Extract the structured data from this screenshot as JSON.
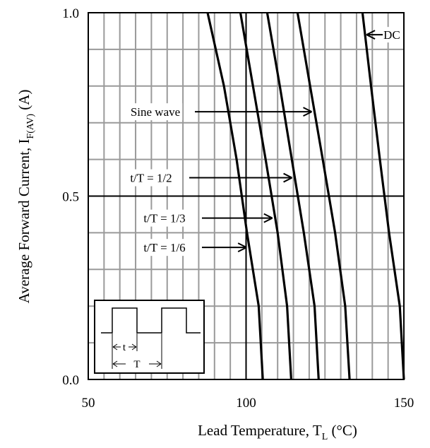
{
  "chart_data": {
    "type": "line",
    "xlabel": {
      "main": "Lead Temperature, T",
      "sub": "L",
      "unit": " (°C)"
    },
    "ylabel": {
      "main": "Average Forward Current, I",
      "sub": "F(AV)",
      "unit": " (A)"
    },
    "xlim": [
      50,
      150
    ],
    "ylim": [
      0.0,
      1.0
    ],
    "x_ticks": [
      {
        "value": 50,
        "label": "50"
      },
      {
        "value": 100,
        "label": "100"
      },
      {
        "value": 150,
        "label": "150"
      }
    ],
    "y_ticks": [
      {
        "value": 0.0,
        "label": "0.0"
      },
      {
        "value": 0.5,
        "label": "0.5"
      },
      {
        "value": 1.0,
        "label": "1.0"
      }
    ],
    "grid": true,
    "grid_minor_x_step": 5,
    "grid_minor_y_step": 0.1,
    "series": [
      {
        "name": "t/T = 1/6",
        "points": [
          [
            105.3,
            0.0
          ],
          [
            104.0,
            0.2
          ],
          [
            100.3,
            0.4
          ],
          [
            97.0,
            0.6
          ],
          [
            93.0,
            0.8
          ],
          [
            87.8,
            1.0
          ]
        ]
      },
      {
        "name": "t/T = 1/3",
        "points": [
          [
            114.3,
            0.0
          ],
          [
            113.0,
            0.2
          ],
          [
            110.0,
            0.4
          ],
          [
            106.2,
            0.6
          ],
          [
            102.2,
            0.8
          ],
          [
            98.2,
            1.0
          ]
        ]
      },
      {
        "name": "t/T = 1/2",
        "points": [
          [
            123.0,
            0.0
          ],
          [
            121.7,
            0.2
          ],
          [
            118.3,
            0.4
          ],
          [
            114.5,
            0.6
          ],
          [
            110.7,
            0.8
          ],
          [
            106.7,
            1.0
          ]
        ]
      },
      {
        "name": "Sine wave",
        "points": [
          [
            132.8,
            0.0
          ],
          [
            131.4,
            0.2
          ],
          [
            128.2,
            0.4
          ],
          [
            124.3,
            0.6
          ],
          [
            120.3,
            0.8
          ],
          [
            116.3,
            1.0
          ]
        ]
      },
      {
        "name": "DC",
        "points": [
          [
            150.0,
            0.0
          ],
          [
            148.7,
            0.2
          ],
          [
            145.3,
            0.4
          ],
          [
            142.4,
            0.6
          ],
          [
            139.6,
            0.8
          ],
          [
            136.9,
            1.0
          ]
        ]
      }
    ],
    "annotations": [
      {
        "text": "DC",
        "series": "DC",
        "arrow_to_y": 0.94
      },
      {
        "text": "Sine wave",
        "series": "Sine wave",
        "arrow_to_y": 0.73
      },
      {
        "text": "t/T = 1/2",
        "series": "t/T = 1/2",
        "arrow_to_y": 0.55
      },
      {
        "text": "t/T = 1/3",
        "series": "t/T = 1/3",
        "arrow_to_y": 0.44
      },
      {
        "text": "t/T = 1/6",
        "series": "t/T = 1/6",
        "arrow_to_y": 0.36
      }
    ],
    "inset": {
      "t_label": "t",
      "T_label": "T"
    }
  }
}
